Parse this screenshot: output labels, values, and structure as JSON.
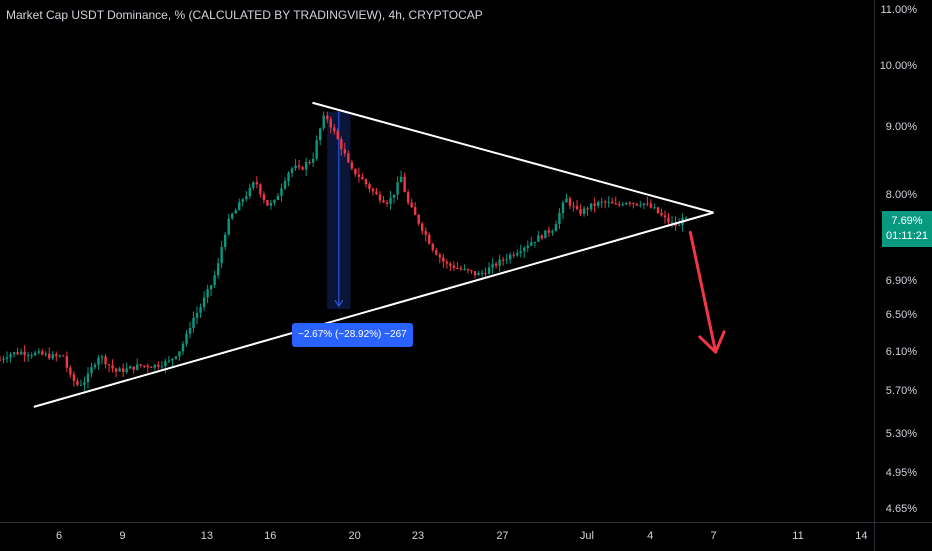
{
  "title": "Market Cap USDT Dominance, % (CALCULATED BY TRADINGVIEW), 4h, CRYPTOCAP",
  "last_price": {
    "value": "7.69%",
    "countdown": "01:11:21"
  },
  "measure": {
    "label": "−2.67% (−28.92%) −267"
  },
  "colors": {
    "background": "#000000",
    "up": "#089981",
    "down": "#f23645",
    "trendline": "#ffffff",
    "arrow": "#f23645",
    "measure": "#2962ff",
    "axis_text": "#d1d4dc"
  },
  "chart_data": {
    "type": "candlestick",
    "title": "Market Cap USDT Dominance, % (CALCULATED BY TRADINGVIEW), 4h, CRYPTOCAP",
    "y_scale": "log",
    "ylim": [
      4.55,
      11.2
    ],
    "price_ticks": [
      "11.00%",
      "10.00%",
      "9.00%",
      "8.00%",
      "7.69%",
      "6.90%",
      "6.50%",
      "6.10%",
      "5.70%",
      "5.30%",
      "4.95%",
      "4.65%"
    ],
    "price_tick_values": [
      11.0,
      10.0,
      9.0,
      8.0,
      6.9,
      6.5,
      6.1,
      5.7,
      5.3,
      4.95,
      4.65
    ],
    "time_ticks": [
      "6",
      "9",
      "13",
      "16",
      "20",
      "23",
      "27",
      "Jul",
      "4",
      "7",
      "11",
      "14"
    ],
    "time_tick_days": [
      6,
      9,
      13,
      16,
      20,
      23,
      27,
      31,
      34,
      37,
      41,
      44
    ],
    "xlim_days": [
      3.2,
      44.6
    ],
    "close_path": [
      [
        3.2,
        6.02
      ],
      [
        3.6,
        6.08
      ],
      [
        4.2,
        6.1
      ],
      [
        5.0,
        6.08
      ],
      [
        5.8,
        6.05
      ],
      [
        6.2,
        6.06
      ],
      [
        6.5,
        5.85
      ],
      [
        6.9,
        5.76
      ],
      [
        7.3,
        5.82
      ],
      [
        7.6,
        5.96
      ],
      [
        7.9,
        6.07
      ],
      [
        8.3,
        5.98
      ],
      [
        8.7,
        5.9
      ],
      [
        9.2,
        5.92
      ],
      [
        9.8,
        5.96
      ],
      [
        10.5,
        5.96
      ],
      [
        11.2,
        6.0
      ],
      [
        11.7,
        6.12
      ],
      [
        12.0,
        6.25
      ],
      [
        12.3,
        6.45
      ],
      [
        12.6,
        6.55
      ],
      [
        12.9,
        6.7
      ],
      [
        13.2,
        6.85
      ],
      [
        13.5,
        7.05
      ],
      [
        13.8,
        7.45
      ],
      [
        14.1,
        7.7
      ],
      [
        14.4,
        7.8
      ],
      [
        14.7,
        7.95
      ],
      [
        15.0,
        8.05
      ],
      [
        15.3,
        8.2
      ],
      [
        15.6,
        8.0
      ],
      [
        15.9,
        7.85
      ],
      [
        16.2,
        7.9
      ],
      [
        16.5,
        8.1
      ],
      [
        16.8,
        8.3
      ],
      [
        17.1,
        8.4
      ],
      [
        17.4,
        8.35
      ],
      [
        17.7,
        8.45
      ],
      [
        18.0,
        8.5
      ],
      [
        18.3,
        8.9
      ],
      [
        18.6,
        9.2
      ],
      [
        18.9,
        9.0
      ],
      [
        19.2,
        8.8
      ],
      [
        19.5,
        8.6
      ],
      [
        19.8,
        8.35
      ],
      [
        20.1,
        8.3
      ],
      [
        20.4,
        8.2
      ],
      [
        20.7,
        8.1
      ],
      [
        21.0,
        8.0
      ],
      [
        21.3,
        7.95
      ],
      [
        21.6,
        7.9
      ],
      [
        21.9,
        8.05
      ],
      [
        22.2,
        8.25
      ],
      [
        22.5,
        7.9
      ],
      [
        22.8,
        7.75
      ],
      [
        23.1,
        7.6
      ],
      [
        23.4,
        7.45
      ],
      [
        23.7,
        7.3
      ],
      [
        24.0,
        7.2
      ],
      [
        24.3,
        7.1
      ],
      [
        24.6,
        7.08
      ],
      [
        24.9,
        7.05
      ],
      [
        25.2,
        7.02
      ],
      [
        25.5,
        7.0
      ],
      [
        25.8,
        6.97
      ],
      [
        26.1,
        7.0
      ],
      [
        26.4,
        7.05
      ],
      [
        26.7,
        7.1
      ],
      [
        27.0,
        7.15
      ],
      [
        27.3,
        7.2
      ],
      [
        27.6,
        7.25
      ],
      [
        27.9,
        7.3
      ],
      [
        28.2,
        7.35
      ],
      [
        28.5,
        7.4
      ],
      [
        28.8,
        7.45
      ],
      [
        29.1,
        7.5
      ],
      [
        29.4,
        7.55
      ],
      [
        29.7,
        7.75
      ],
      [
        30.0,
        7.95
      ],
      [
        30.3,
        7.85
      ],
      [
        30.6,
        7.75
      ],
      [
        30.9,
        7.8
      ],
      [
        31.2,
        7.85
      ],
      [
        31.5,
        7.88
      ],
      [
        31.8,
        7.9
      ],
      [
        32.1,
        7.88
      ],
      [
        32.4,
        7.85
      ],
      [
        32.7,
        7.9
      ],
      [
        33.0,
        7.92
      ],
      [
        33.3,
        7.88
      ],
      [
        33.6,
        7.9
      ],
      [
        33.9,
        7.85
      ],
      [
        34.2,
        7.8
      ],
      [
        34.5,
        7.72
      ],
      [
        34.8,
        7.65
      ],
      [
        35.1,
        7.6
      ],
      [
        35.4,
        7.58
      ],
      [
        35.7,
        7.69
      ]
    ],
    "annotations": {
      "upper_trendline": [
        [
          18.0,
          9.38
        ],
        [
          37.0,
          7.76
        ]
      ],
      "lower_trendline": [
        [
          4.8,
          5.55
        ],
        [
          37.0,
          7.76
        ]
      ],
      "measure_range": {
        "from_day": 18.7,
        "to_day": 19.8,
        "from": 9.24,
        "to": 6.57,
        "label": "−2.67% (−28.92%) −267"
      },
      "arrow": {
        "from": [
          35.9,
          7.5
        ],
        "to": [
          37.1,
          6.1
        ]
      }
    }
  }
}
